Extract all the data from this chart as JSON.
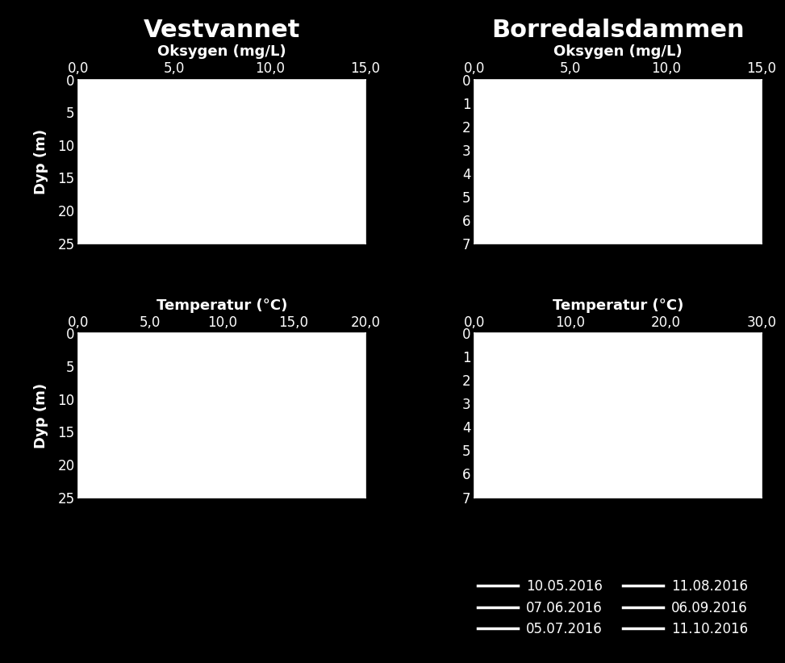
{
  "background_color": "#000000",
  "plot_bg_color": "#ffffff",
  "text_color": "#ffffff",
  "title_left": "Vestvannet",
  "title_right": "Borredalsdammen",
  "title_fontsize": 22,
  "title_fontweight": "bold",
  "xlabel_oxy": "Oksygen (mg/L)",
  "xlabel_temp": "Temperatur (°C)",
  "ylabel": "Dyp (m)",
  "label_fontsize": 13,
  "tick_fontsize": 12,
  "panels": {
    "VL_oxy": {
      "xlim": [
        0,
        15
      ],
      "xticks": [
        0.0,
        5.0,
        10.0,
        15.0
      ],
      "xticklabels": [
        "0,0",
        "5,0",
        "10,0",
        "15,0"
      ],
      "ylim": [
        25,
        0
      ],
      "yticks": [
        0,
        5,
        10,
        15,
        20,
        25
      ],
      "yticklabels": [
        "0",
        "5",
        "10",
        "15",
        "20",
        "25"
      ]
    },
    "VL_temp": {
      "xlim": [
        0,
        20
      ],
      "xticks": [
        0.0,
        5.0,
        10.0,
        15.0,
        20.0
      ],
      "xticklabels": [
        "0,0",
        "5,0",
        "10,0",
        "15,0",
        "20,0"
      ],
      "ylim": [
        25,
        0
      ],
      "yticks": [
        0,
        5,
        10,
        15,
        20,
        25
      ],
      "yticklabels": [
        "0",
        "5",
        "10",
        "15",
        "20",
        "25"
      ]
    },
    "BR_oxy": {
      "xlim": [
        0,
        15
      ],
      "xticks": [
        0.0,
        5.0,
        10.0,
        15.0
      ],
      "xticklabels": [
        "0,0",
        "5,0",
        "10,0",
        "15,0"
      ],
      "ylim": [
        7,
        0
      ],
      "yticks": [
        0,
        1,
        2,
        3,
        4,
        5,
        6,
        7
      ],
      "yticklabels": [
        "0",
        "1",
        "2",
        "3",
        "4",
        "5",
        "6",
        "7"
      ]
    },
    "BR_temp": {
      "xlim": [
        0,
        30
      ],
      "xticks": [
        0.0,
        10.0,
        20.0,
        30.0
      ],
      "xticklabels": [
        "0,0",
        "10,0",
        "20,0",
        "30,0"
      ],
      "ylim": [
        7,
        0
      ],
      "yticks": [
        0,
        1,
        2,
        3,
        4,
        5,
        6,
        7
      ],
      "yticklabels": [
        "0",
        "1",
        "2",
        "3",
        "4",
        "5",
        "6",
        "7"
      ]
    }
  },
  "legend_entries": [
    {
      "label": "10.05.2016",
      "color": "#ffffff",
      "linewidth": 2.5
    },
    {
      "label": "07.06.2016",
      "color": "#ffffff",
      "linewidth": 2.5
    },
    {
      "label": "05.07.2016",
      "color": "#ffffff",
      "linewidth": 2.5
    },
    {
      "label": "11.08.2016",
      "color": "#ffffff",
      "linewidth": 2.5
    },
    {
      "label": "06.09.2016",
      "color": "#ffffff",
      "linewidth": 2.5
    },
    {
      "label": "11.10.2016",
      "color": "#ffffff",
      "linewidth": 2.5
    }
  ]
}
